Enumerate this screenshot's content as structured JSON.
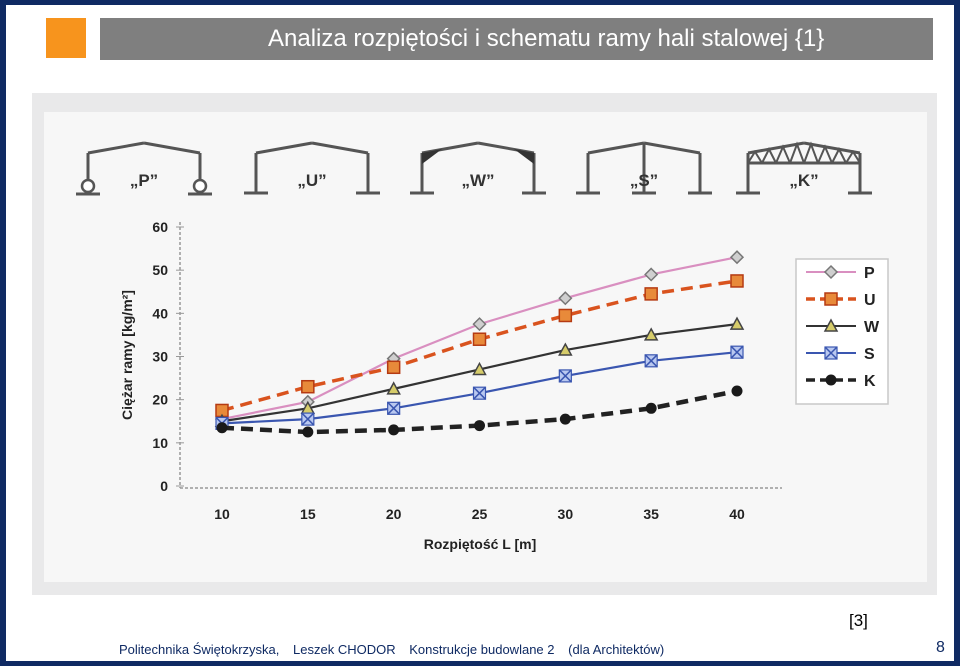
{
  "slide": {
    "title": "Analiza rozpiętości i schematu ramy hali stalowej {1}",
    "source_ref": "[3]",
    "footer": {
      "institution": "Politechnika Świętokrzyska,",
      "author": "Leszek CHODOR",
      "course": "Konstrukcje budowlane  2",
      "audience": "(dla Architektów)"
    },
    "page_number": "8",
    "colors": {
      "background": "#0f2a63",
      "accent": "#f7941d",
      "title_bar": "#7f7f7f"
    }
  },
  "frames": [
    {
      "type": "P",
      "label": "„P”"
    },
    {
      "type": "U",
      "label": "„U”"
    },
    {
      "type": "W",
      "label": "„W”"
    },
    {
      "type": "S",
      "label": "„S”"
    },
    {
      "type": "K",
      "label": "„K”"
    }
  ],
  "chart_data": {
    "type": "line",
    "title": "",
    "xlabel": "Rozpiętość L [m]",
    "ylabel": "Ciężar ramy [kg/m²]",
    "x": [
      10,
      15,
      20,
      25,
      30,
      35,
      40
    ],
    "x_tick_labels": [
      "10",
      "15",
      "20",
      "25",
      "30",
      "35",
      "40"
    ],
    "y_tick_labels": [
      "0",
      "10",
      "20",
      "30",
      "40",
      "50",
      "60"
    ],
    "ylim": [
      0,
      60
    ],
    "grid": false,
    "legend_position": "right",
    "series": [
      {
        "name": "P",
        "color": "#d98fc0",
        "marker": "diamond",
        "dash": "solid",
        "values": [
          15.5,
          19.5,
          29.5,
          37.5,
          43.5,
          49,
          53
        ]
      },
      {
        "name": "U",
        "color": "#d9531e",
        "marker": "square",
        "dash": "dashed",
        "values": [
          17.5,
          23,
          27.5,
          34,
          39.5,
          44.5,
          47.5
        ]
      },
      {
        "name": "W",
        "color": "#333333",
        "marker": "triangle",
        "dash": "solid",
        "values": [
          15,
          18,
          22.5,
          27,
          31.5,
          35,
          37.5
        ]
      },
      {
        "name": "S",
        "color": "#3a56b0",
        "marker": "x-square",
        "dash": "solid",
        "values": [
          14.5,
          15.5,
          18,
          21.5,
          25.5,
          29,
          31
        ]
      },
      {
        "name": "K",
        "color": "#222222",
        "marker": "circle",
        "dash": "dashed",
        "values": [
          13.5,
          12.5,
          13,
          14,
          15.5,
          18,
          22
        ]
      }
    ]
  }
}
